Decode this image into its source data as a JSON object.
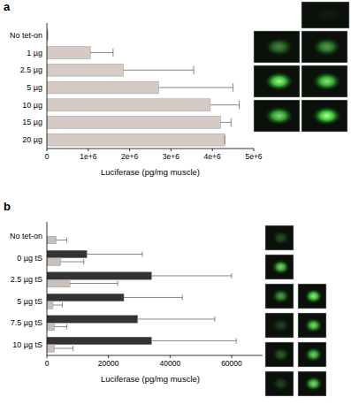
{
  "chart_data": [
    {
      "type": "bar",
      "title": "a",
      "orientation": "horizontal",
      "grid": false,
      "categories": [
        "No tet-on",
        "1 µg",
        "2.5 µg",
        "5 µg",
        "10 µg",
        "15 µg",
        "20 µg"
      ],
      "values": [
        20000,
        1050000,
        1850000,
        2700000,
        3950000,
        4200000,
        4300000
      ],
      "errors": [
        0,
        550000,
        1700000,
        1800000,
        700000,
        250000,
        0
      ],
      "color": "#d6cac5",
      "x_label": "Luciferase (pg/mg muscle)",
      "xlim": [
        0,
        5000000
      ],
      "xticks": [
        0,
        {
          "value": 1000000,
          "label": "1e+6"
        },
        {
          "value": 2000000,
          "label": "2e+6"
        },
        {
          "value": 3000000,
          "label": "3e+6"
        },
        {
          "value": 4000000,
          "label": "4e+6"
        },
        {
          "value": 5000000,
          "label": "5e+6"
        }
      ]
    },
    {
      "type": "bar",
      "title": "b",
      "orientation": "horizontal",
      "grid": false,
      "categories": [
        "No tet-on",
        "0 µg tS",
        "2.5 µg tS",
        "5 µg tS",
        "7.5 µg tS",
        "10 µg tS"
      ],
      "series": [
        {
          "color": "#333333",
          "values": [
            null,
            13000,
            34000,
            25000,
            29500,
            34000
          ],
          "errors": [
            null,
            18000,
            26000,
            19000,
            25000,
            27500
          ]
        },
        {
          "color": "#cbbfba",
          "values": [
            3000,
            4500,
            7500,
            2000,
            2500,
            2500
          ],
          "errors": [
            3500,
            7500,
            15500,
            3000,
            4000,
            6000
          ]
        }
      ],
      "x_label": "Luciferase (pg/mg muscle)",
      "xlim": [
        0,
        70000
      ],
      "xticks": [
        0,
        20000,
        40000,
        60000
      ]
    }
  ]
}
